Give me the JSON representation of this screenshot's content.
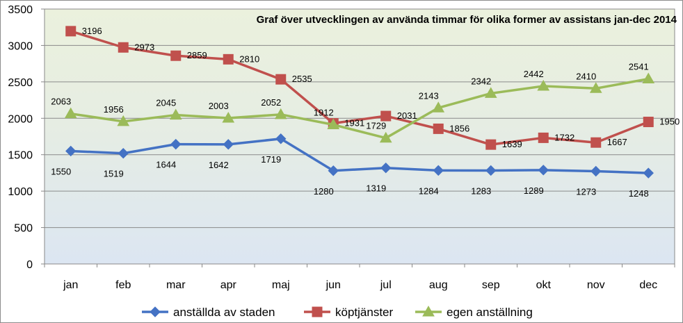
{
  "chart_data": {
    "type": "line",
    "title": "Graf över utvecklingen av använda timmar för olika former av assistans jan-dec 2014",
    "categories": [
      "jan",
      "feb",
      "mar",
      "apr",
      "maj",
      "jun",
      "jul",
      "aug",
      "sep",
      "okt",
      "nov",
      "dec"
    ],
    "ylim": [
      0,
      3500
    ],
    "yticks": [
      0,
      500,
      1000,
      1500,
      2000,
      2500,
      3000,
      3500
    ],
    "grid": true,
    "legend_position": "bottom",
    "series": [
      {
        "name": "anställda av staden",
        "color": "#4472c4",
        "marker": "diamond",
        "values": [
          1550,
          1519,
          1644,
          1642,
          1719,
          1280,
          1319,
          1284,
          1283,
          1289,
          1273,
          1248
        ]
      },
      {
        "name": "köptjänster",
        "color": "#c0504d",
        "marker": "square",
        "values": [
          3196,
          2973,
          2859,
          2810,
          2535,
          1931,
          2031,
          1856,
          1639,
          1732,
          1667,
          1950
        ]
      },
      {
        "name": "egen anställning",
        "color": "#9bbb59",
        "marker": "triangle",
        "values": [
          2063,
          1956,
          2045,
          2003,
          2052,
          1912,
          1729,
          2143,
          2342,
          2442,
          2410,
          2541
        ]
      }
    ]
  }
}
